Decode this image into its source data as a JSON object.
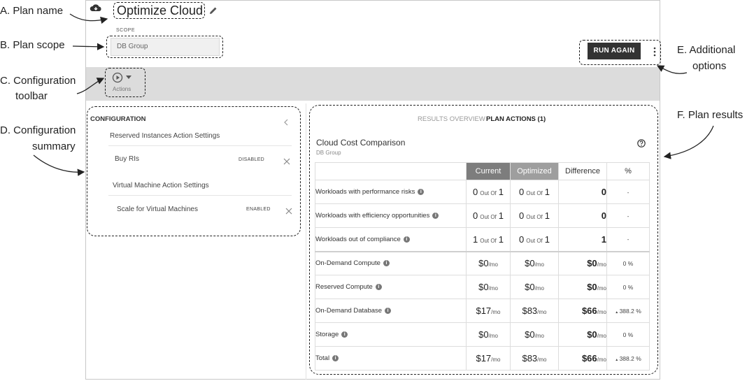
{
  "callouts": {
    "a": "A. Plan name",
    "b": "B. Plan scope",
    "c1": "C. Configuration",
    "c2": "toolbar",
    "d1": "D. Configuration",
    "d2": "summary",
    "e1": "E. Additional",
    "e2": "options",
    "f": "F. Plan results"
  },
  "plan": {
    "name": "Optimize Cloud"
  },
  "scope": {
    "label": "SCOPE",
    "value": "DB Group"
  },
  "header": {
    "run_again": "RUN AGAIN"
  },
  "toolbar": {
    "actions_label": "Actions"
  },
  "configuration": {
    "title": "CONFIGURATION",
    "sections": [
      {
        "heading": "Reserved Instances Action Settings",
        "item": "Buy RIs",
        "status": "DISABLED"
      },
      {
        "heading": "Virtual Machine Action Settings",
        "item": "Scale for Virtual Machines",
        "status": "ENABLED"
      }
    ]
  },
  "results": {
    "tabs": [
      "RESULTS OVERVIEW",
      "PLAN ACTIONS (1)"
    ],
    "title": "Cloud Cost Comparison",
    "subtitle": "DB Group",
    "columns": [
      "Current",
      "Optimized",
      "Difference",
      "%"
    ],
    "unit_mo": "/mo",
    "out_of": "Out Of",
    "rows": [
      {
        "label": "Workloads with performance risks",
        "cur": "0",
        "cur_of": "1",
        "opt": "0",
        "opt_of": "1",
        "diff": "0",
        "pct": "-"
      },
      {
        "label": "Workloads with efficiency opportunities",
        "cur": "0",
        "cur_of": "1",
        "opt": "0",
        "opt_of": "1",
        "diff": "0",
        "pct": "-"
      },
      {
        "label": "Workloads out of compliance",
        "cur": "1",
        "cur_of": "1",
        "opt": "0",
        "opt_of": "1",
        "diff": "1",
        "pct": "-"
      },
      {
        "label": "On-Demand Compute",
        "cur": "$0",
        "opt": "$0",
        "diff": "$0",
        "pct": "0 %"
      },
      {
        "label": "Reserved Compute",
        "cur": "$0",
        "opt": "$0",
        "diff": "$0",
        "pct": "0 %"
      },
      {
        "label": "On-Demand Database",
        "cur": "$17",
        "opt": "$83",
        "diff": "$66",
        "pct": "388.2 %",
        "up": true
      },
      {
        "label": "Storage",
        "cur": "$0",
        "opt": "$0",
        "diff": "$0",
        "pct": "0 %"
      },
      {
        "label": "Total",
        "cur": "$17",
        "opt": "$83",
        "diff": "$66",
        "pct": "388.2 %",
        "up": true
      }
    ]
  }
}
